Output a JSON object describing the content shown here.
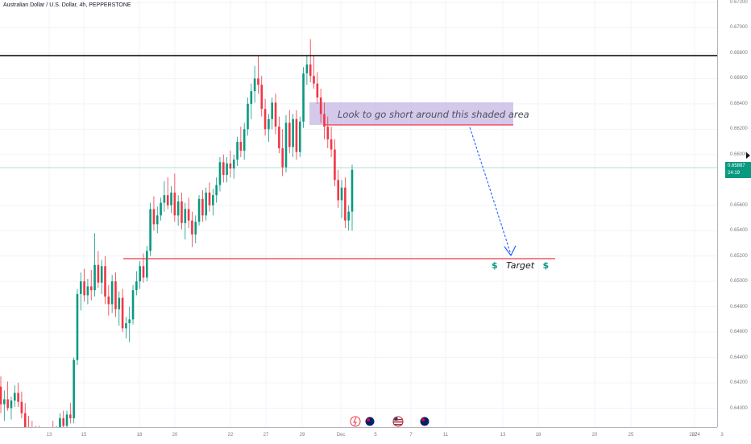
{
  "header": {
    "symbol_title": "Australian Dollar / U.S. Dollar, 4h, PEPPERSTONE"
  },
  "price_badge": {
    "price": "0.65887",
    "countdown": "24:19",
    "color": "#089981"
  },
  "annotations": {
    "short_note": "Look to go short around this shaded area",
    "target_label": "Target",
    "target_symbol": "$"
  },
  "colors": {
    "up": "#089981",
    "down": "#f23645",
    "resistance": "#000000",
    "level": "#f23645",
    "arrow": "#2962ff"
  },
  "events": [
    {
      "icon": "flash-event-icon",
      "x": "Dec 5"
    },
    {
      "icon": "au-flag-icon",
      "x": "Dec 5"
    },
    {
      "icon": "us-flag-icon",
      "x": "Dec 8"
    },
    {
      "icon": "au-flag-icon",
      "x": "Dec 12"
    }
  ],
  "chart_data": {
    "type": "candlestick",
    "title": "Australian Dollar / U.S. Dollar, 4h, PEPPERSTONE",
    "ylim": [
      0.639,
      0.672
    ],
    "y_ticks": [
      "0.67200",
      "0.67000",
      "0.66800",
      "0.66600",
      "0.66400",
      "0.66200",
      "0.66000",
      "0.65600",
      "0.65400",
      "0.65200",
      "0.65000",
      "0.64800",
      "0.64600",
      "0.64400",
      "0.64200",
      "0.64000"
    ],
    "x_ticks": [
      "13",
      "15",
      "18",
      "20",
      "22",
      "27",
      "29",
      "Dec",
      "5",
      "7",
      "11",
      "13",
      "18",
      "20",
      "25",
      "27",
      "2024",
      "3"
    ],
    "current_price": 0.65887,
    "levels": [
      {
        "name": "resistance",
        "value": 0.6677,
        "color": "#000000"
      },
      {
        "name": "short zone bottom",
        "value": 0.6623,
        "color": "#f23645"
      },
      {
        "name": "target",
        "value": 0.6517,
        "color": "#f23645"
      }
    ],
    "short_zone": {
      "low": 0.6623,
      "high": 0.6641
    },
    "candles": [
      {
        "o": 0.6417,
        "h": 0.6425,
        "l": 0.6396,
        "c": 0.6403
      },
      {
        "o": 0.6403,
        "h": 0.6414,
        "l": 0.639,
        "c": 0.6407
      },
      {
        "o": 0.6407,
        "h": 0.6421,
        "l": 0.6398,
        "c": 0.64
      },
      {
        "o": 0.64,
        "h": 0.6409,
        "l": 0.6391,
        "c": 0.6406
      },
      {
        "o": 0.6406,
        "h": 0.6418,
        "l": 0.6401,
        "c": 0.6412
      },
      {
        "o": 0.6412,
        "h": 0.642,
        "l": 0.6401,
        "c": 0.6405
      },
      {
        "o": 0.6405,
        "h": 0.6413,
        "l": 0.6392,
        "c": 0.6396
      },
      {
        "o": 0.6396,
        "h": 0.6404,
        "l": 0.638,
        "c": 0.6384
      },
      {
        "o": 0.6384,
        "h": 0.6394,
        "l": 0.6372,
        "c": 0.638
      },
      {
        "o": 0.638,
        "h": 0.639,
        "l": 0.6364,
        "c": 0.6376
      },
      {
        "o": 0.6376,
        "h": 0.6386,
        "l": 0.6366,
        "c": 0.6378
      },
      {
        "o": 0.6378,
        "h": 0.6386,
        "l": 0.6364,
        "c": 0.637
      },
      {
        "o": 0.637,
        "h": 0.6379,
        "l": 0.636,
        "c": 0.6375
      },
      {
        "o": 0.6375,
        "h": 0.6382,
        "l": 0.6366,
        "c": 0.6372
      },
      {
        "o": 0.6372,
        "h": 0.6384,
        "l": 0.6368,
        "c": 0.6381
      },
      {
        "o": 0.6381,
        "h": 0.639,
        "l": 0.6371,
        "c": 0.6377
      },
      {
        "o": 0.6377,
        "h": 0.6386,
        "l": 0.637,
        "c": 0.6383
      },
      {
        "o": 0.6383,
        "h": 0.6396,
        "l": 0.6379,
        "c": 0.6392
      },
      {
        "o": 0.6392,
        "h": 0.6398,
        "l": 0.6382,
        "c": 0.6386
      },
      {
        "o": 0.6386,
        "h": 0.6398,
        "l": 0.638,
        "c": 0.6395
      },
      {
        "o": 0.6395,
        "h": 0.6404,
        "l": 0.6388,
        "c": 0.6392
      },
      {
        "o": 0.6392,
        "h": 0.644,
        "l": 0.6388,
        "c": 0.6438
      },
      {
        "o": 0.6438,
        "h": 0.6494,
        "l": 0.6434,
        "c": 0.649
      },
      {
        "o": 0.649,
        "h": 0.6507,
        "l": 0.6477,
        "c": 0.65
      },
      {
        "o": 0.65,
        "h": 0.651,
        "l": 0.6484,
        "c": 0.6489
      },
      {
        "o": 0.6489,
        "h": 0.6502,
        "l": 0.6482,
        "c": 0.6496
      },
      {
        "o": 0.6496,
        "h": 0.6509,
        "l": 0.6485,
        "c": 0.6493
      },
      {
        "o": 0.6493,
        "h": 0.6538,
        "l": 0.6488,
        "c": 0.6513
      },
      {
        "o": 0.6513,
        "h": 0.6524,
        "l": 0.6495,
        "c": 0.6499
      },
      {
        "o": 0.6499,
        "h": 0.6517,
        "l": 0.649,
        "c": 0.6512
      },
      {
        "o": 0.6512,
        "h": 0.652,
        "l": 0.6482,
        "c": 0.6488
      },
      {
        "o": 0.6488,
        "h": 0.6497,
        "l": 0.6473,
        "c": 0.6482
      },
      {
        "o": 0.6482,
        "h": 0.6505,
        "l": 0.6475,
        "c": 0.65
      },
      {
        "o": 0.65,
        "h": 0.6507,
        "l": 0.6472,
        "c": 0.6478
      },
      {
        "o": 0.6478,
        "h": 0.6492,
        "l": 0.6465,
        "c": 0.6487
      },
      {
        "o": 0.6487,
        "h": 0.6494,
        "l": 0.646,
        "c": 0.6463
      },
      {
        "o": 0.6463,
        "h": 0.6472,
        "l": 0.6455,
        "c": 0.6467
      },
      {
        "o": 0.6467,
        "h": 0.648,
        "l": 0.6452,
        "c": 0.647
      },
      {
        "o": 0.647,
        "h": 0.6497,
        "l": 0.6466,
        "c": 0.6493
      },
      {
        "o": 0.6493,
        "h": 0.6508,
        "l": 0.6489,
        "c": 0.65
      },
      {
        "o": 0.65,
        "h": 0.6516,
        "l": 0.6494,
        "c": 0.6512
      },
      {
        "o": 0.6512,
        "h": 0.6522,
        "l": 0.6499,
        "c": 0.6503
      },
      {
        "o": 0.6503,
        "h": 0.6528,
        "l": 0.65,
        "c": 0.6524
      },
      {
        "o": 0.6524,
        "h": 0.6562,
        "l": 0.652,
        "c": 0.6557
      },
      {
        "o": 0.6557,
        "h": 0.6567,
        "l": 0.654,
        "c": 0.6545
      },
      {
        "o": 0.6545,
        "h": 0.6559,
        "l": 0.6538,
        "c": 0.6552
      },
      {
        "o": 0.6552,
        "h": 0.6566,
        "l": 0.6548,
        "c": 0.6562
      },
      {
        "o": 0.6562,
        "h": 0.6579,
        "l": 0.6555,
        "c": 0.6568
      },
      {
        "o": 0.6568,
        "h": 0.6582,
        "l": 0.6557,
        "c": 0.656
      },
      {
        "o": 0.656,
        "h": 0.6575,
        "l": 0.6554,
        "c": 0.657
      },
      {
        "o": 0.657,
        "h": 0.6585,
        "l": 0.6547,
        "c": 0.6552
      },
      {
        "o": 0.6552,
        "h": 0.6568,
        "l": 0.6544,
        "c": 0.6563
      },
      {
        "o": 0.6563,
        "h": 0.657,
        "l": 0.6541,
        "c": 0.6546
      },
      {
        "o": 0.6546,
        "h": 0.6562,
        "l": 0.6533,
        "c": 0.6557
      },
      {
        "o": 0.6557,
        "h": 0.6566,
        "l": 0.6542,
        "c": 0.6548
      },
      {
        "o": 0.6548,
        "h": 0.6555,
        "l": 0.6527,
        "c": 0.6537
      },
      {
        "o": 0.6537,
        "h": 0.6552,
        "l": 0.653,
        "c": 0.6547
      },
      {
        "o": 0.6547,
        "h": 0.6568,
        "l": 0.6544,
        "c": 0.6565
      },
      {
        "o": 0.6565,
        "h": 0.6572,
        "l": 0.6547,
        "c": 0.6552
      },
      {
        "o": 0.6552,
        "h": 0.6574,
        "l": 0.6548,
        "c": 0.657
      },
      {
        "o": 0.657,
        "h": 0.6578,
        "l": 0.6555,
        "c": 0.656
      },
      {
        "o": 0.656,
        "h": 0.6573,
        "l": 0.6552,
        "c": 0.6568
      },
      {
        "o": 0.6568,
        "h": 0.6582,
        "l": 0.6562,
        "c": 0.6576
      },
      {
        "o": 0.6576,
        "h": 0.6598,
        "l": 0.6571,
        "c": 0.6594
      },
      {
        "o": 0.6594,
        "h": 0.66,
        "l": 0.6578,
        "c": 0.6584
      },
      {
        "o": 0.6584,
        "h": 0.6598,
        "l": 0.6578,
        "c": 0.6593
      },
      {
        "o": 0.6593,
        "h": 0.6603,
        "l": 0.6582,
        "c": 0.6589
      },
      {
        "o": 0.6589,
        "h": 0.66,
        "l": 0.6581,
        "c": 0.6596
      },
      {
        "o": 0.6596,
        "h": 0.6614,
        "l": 0.6591,
        "c": 0.661
      },
      {
        "o": 0.661,
        "h": 0.6622,
        "l": 0.6598,
        "c": 0.6603
      },
      {
        "o": 0.6603,
        "h": 0.6625,
        "l": 0.6596,
        "c": 0.662
      },
      {
        "o": 0.662,
        "h": 0.6645,
        "l": 0.6615,
        "c": 0.664
      },
      {
        "o": 0.664,
        "h": 0.6656,
        "l": 0.6628,
        "c": 0.665
      },
      {
        "o": 0.665,
        "h": 0.667,
        "l": 0.6641,
        "c": 0.666
      },
      {
        "o": 0.666,
        "h": 0.6678,
        "l": 0.6648,
        "c": 0.6655
      },
      {
        "o": 0.6655,
        "h": 0.6662,
        "l": 0.663,
        "c": 0.6636
      },
      {
        "o": 0.6636,
        "h": 0.6644,
        "l": 0.6615,
        "c": 0.662
      },
      {
        "o": 0.662,
        "h": 0.6632,
        "l": 0.661,
        "c": 0.6628
      },
      {
        "o": 0.6628,
        "h": 0.6645,
        "l": 0.662,
        "c": 0.6641
      },
      {
        "o": 0.6641,
        "h": 0.6648,
        "l": 0.6616,
        "c": 0.6622
      },
      {
        "o": 0.6622,
        "h": 0.663,
        "l": 0.6601,
        "c": 0.6605
      },
      {
        "o": 0.6605,
        "h": 0.662,
        "l": 0.6583,
        "c": 0.659
      },
      {
        "o": 0.659,
        "h": 0.6631,
        "l": 0.6586,
        "c": 0.6625
      },
      {
        "o": 0.6625,
        "h": 0.6635,
        "l": 0.6601,
        "c": 0.6606
      },
      {
        "o": 0.6606,
        "h": 0.6632,
        "l": 0.6598,
        "c": 0.6628
      },
      {
        "o": 0.6628,
        "h": 0.6635,
        "l": 0.6596,
        "c": 0.6602
      },
      {
        "o": 0.6602,
        "h": 0.663,
        "l": 0.6598,
        "c": 0.6626
      },
      {
        "o": 0.6626,
        "h": 0.6669,
        "l": 0.6621,
        "c": 0.6664
      },
      {
        "o": 0.6664,
        "h": 0.6678,
        "l": 0.6655,
        "c": 0.6671
      },
      {
        "o": 0.6671,
        "h": 0.6691,
        "l": 0.6657,
        "c": 0.6662
      },
      {
        "o": 0.6662,
        "h": 0.6678,
        "l": 0.6652,
        "c": 0.6656
      },
      {
        "o": 0.6656,
        "h": 0.6665,
        "l": 0.664,
        "c": 0.6645
      },
      {
        "o": 0.6645,
        "h": 0.6652,
        "l": 0.6625,
        "c": 0.6632
      },
      {
        "o": 0.6632,
        "h": 0.6641,
        "l": 0.6612,
        "c": 0.6622
      },
      {
        "o": 0.6622,
        "h": 0.663,
        "l": 0.6605,
        "c": 0.6612
      },
      {
        "o": 0.6612,
        "h": 0.6622,
        "l": 0.6598,
        "c": 0.6604
      },
      {
        "o": 0.6604,
        "h": 0.6612,
        "l": 0.6575,
        "c": 0.658
      },
      {
        "o": 0.658,
        "h": 0.6588,
        "l": 0.6558,
        "c": 0.6564
      },
      {
        "o": 0.6564,
        "h": 0.658,
        "l": 0.655,
        "c": 0.6574
      },
      {
        "o": 0.6574,
        "h": 0.6582,
        "l": 0.6542,
        "c": 0.6548
      },
      {
        "o": 0.6548,
        "h": 0.656,
        "l": 0.654,
        "c": 0.6555
      },
      {
        "o": 0.6555,
        "h": 0.6592,
        "l": 0.654,
        "c": 0.6588
      }
    ]
  }
}
